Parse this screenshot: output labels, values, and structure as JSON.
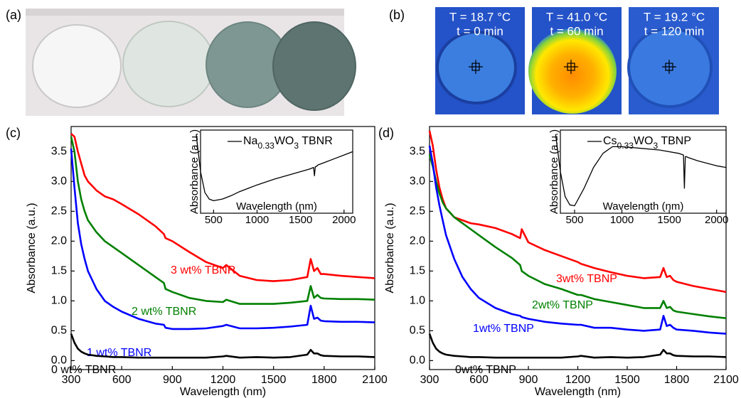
{
  "panel_labels": [
    "(a)",
    "(b)",
    "(c)",
    "(d)"
  ],
  "thermal_images": [
    {
      "temperature": "T = 18.7 °C",
      "time": "t = 0 min"
    },
    {
      "temperature": "T = 41.0 °C",
      "time": "t = 60 min"
    },
    {
      "temperature": "T = 19.2 °C",
      "time": "t = 120 min"
    }
  ],
  "chart_data": [
    {
      "type": "line",
      "xlabel": "Wavelength (nm)",
      "ylabel": "Absorbance (a.u.)",
      "x": [
        300,
        320,
        340,
        360,
        380,
        400,
        450,
        500,
        550,
        600,
        700,
        800,
        850,
        860,
        900,
        1000,
        1100,
        1200,
        1220,
        1300,
        1400,
        1500,
        1600,
        1700,
        1720,
        1740,
        1760,
        1780,
        1800,
        1900,
        2000,
        2100
      ],
      "xlim": [
        300,
        2100
      ],
      "xticks": [
        300,
        600,
        900,
        1200,
        1500,
        1800,
        2100
      ],
      "ylim": [
        -0.15,
        3.92
      ],
      "yticks": [
        {
          "value": 0,
          "label": "0.0"
        },
        0.5,
        {
          "value": 1,
          "label": "1.0"
        },
        1.5,
        {
          "value": 2,
          "label": "2.0"
        },
        2.5,
        {
          "value": 3,
          "label": "3.0"
        },
        3.5
      ],
      "series": [
        {
          "name": "3 wt% TBNR",
          "color": "#ff0000",
          "values": [
            3.8,
            3.75,
            3.5,
            3.3,
            3.1,
            3.0,
            2.85,
            2.75,
            2.7,
            2.62,
            2.45,
            2.25,
            2.12,
            2.05,
            2.0,
            1.82,
            1.65,
            1.55,
            1.6,
            1.42,
            1.35,
            1.33,
            1.35,
            1.4,
            1.7,
            1.5,
            1.55,
            1.45,
            1.45,
            1.42,
            1.4,
            1.38
          ]
        },
        {
          "name": "2 wt% TBNR",
          "color": "#008000",
          "values": [
            3.75,
            3.5,
            3.0,
            2.7,
            2.5,
            2.35,
            2.15,
            2.0,
            1.9,
            1.8,
            1.6,
            1.4,
            1.3,
            1.2,
            1.15,
            1.05,
            1.0,
            0.98,
            1.02,
            0.95,
            0.95,
            0.95,
            0.97,
            1.0,
            1.25,
            1.05,
            1.1,
            1.05,
            1.04,
            1.03,
            1.03,
            1.02
          ]
        },
        {
          "name": "1 wt% TBNR",
          "color": "#0000ff",
          "values": [
            3.55,
            2.9,
            2.3,
            1.95,
            1.7,
            1.5,
            1.2,
            1.0,
            0.9,
            0.82,
            0.7,
            0.62,
            0.6,
            0.55,
            0.53,
            0.53,
            0.54,
            0.58,
            0.6,
            0.54,
            0.54,
            0.55,
            0.57,
            0.6,
            0.92,
            0.7,
            0.72,
            0.67,
            0.66,
            0.65,
            0.65,
            0.64
          ]
        },
        {
          "name": "0 wt% TBNR",
          "color": "#000000",
          "values": [
            0.45,
            0.3,
            0.2,
            0.15,
            0.12,
            0.1,
            0.08,
            0.07,
            0.06,
            0.06,
            0.05,
            0.05,
            0.05,
            0.05,
            0.05,
            0.05,
            0.05,
            0.07,
            0.08,
            0.05,
            0.06,
            0.05,
            0.06,
            0.1,
            0.18,
            0.12,
            0.12,
            0.09,
            0.08,
            0.07,
            0.07,
            0.06
          ]
        }
      ]
    },
    {
      "type": "line",
      "xlabel": "Wavelength (nm)",
      "ylabel": "Absorbance (a.u.)",
      "x": [
        300,
        350,
        400,
        450,
        500,
        600,
        700,
        800,
        900,
        1000,
        1200,
        1400,
        1600,
        1650,
        1660,
        1670,
        1680,
        1700,
        1800,
        1900,
        2000,
        2100
      ],
      "xlim": [
        350,
        2100
      ],
      "xticks": [
        500,
        1000,
        1500,
        2000
      ],
      "ylim": [
        0,
        1
      ],
      "series": [
        {
          "name": "Na0.33WO3 TBNR",
          "color": "#000000",
          "values": [
            0.95,
            0.5,
            0.25,
            0.17,
            0.15,
            0.17,
            0.21,
            0.26,
            0.3,
            0.34,
            0.41,
            0.47,
            0.53,
            0.55,
            0.45,
            0.56,
            0.56,
            0.58,
            0.62,
            0.66,
            0.7,
            0.74
          ]
        }
      ]
    },
    {
      "type": "line",
      "xlabel": "Wavelength (nm)",
      "ylabel": "Absorbance (a.u.)",
      "x": [
        300,
        320,
        340,
        360,
        380,
        400,
        450,
        500,
        550,
        600,
        700,
        800,
        850,
        860,
        900,
        1000,
        1100,
        1200,
        1220,
        1300,
        1400,
        1500,
        1600,
        1700,
        1720,
        1740,
        1760,
        1780,
        1800,
        1900,
        2000,
        2100
      ],
      "xlim": [
        300,
        2100
      ],
      "xticks": [
        300,
        600,
        900,
        1200,
        1500,
        1800,
        2100
      ],
      "ylim": [
        -0.15,
        3.92
      ],
      "yticks": [
        {
          "value": 0,
          "label": "0.0"
        },
        0.5,
        {
          "value": 1,
          "label": "1.0"
        },
        1.5,
        {
          "value": 2,
          "label": "2.0"
        },
        2.5,
        {
          "value": 3,
          "label": "3.0"
        },
        3.5
      ],
      "series": [
        {
          "name": "3wt% TBNP",
          "color": "#ff0000",
          "values": [
            3.85,
            3.6,
            3.2,
            2.9,
            2.7,
            2.55,
            2.4,
            2.35,
            2.3,
            2.28,
            2.22,
            2.12,
            2.05,
            2.2,
            1.98,
            1.85,
            1.75,
            1.65,
            1.62,
            1.55,
            1.48,
            1.42,
            1.38,
            1.4,
            1.55,
            1.4,
            1.42,
            1.35,
            1.32,
            1.25,
            1.2,
            1.15
          ]
        },
        {
          "name": "2wt% TBNP",
          "color": "#008000",
          "values": [
            3.45,
            3.25,
            3.0,
            2.8,
            2.65,
            2.55,
            2.4,
            2.3,
            2.2,
            2.1,
            1.9,
            1.72,
            1.6,
            1.5,
            1.42,
            1.28,
            1.2,
            1.1,
            1.1,
            1.03,
            0.98,
            0.93,
            0.88,
            0.88,
            1.0,
            0.88,
            0.9,
            0.84,
            0.82,
            0.78,
            0.74,
            0.71
          ]
        },
        {
          "name": "1wt% TBNP",
          "color": "#0000ff",
          "values": [
            3.6,
            3.3,
            2.9,
            2.6,
            2.35,
            2.1,
            1.7,
            1.4,
            1.2,
            1.05,
            0.88,
            0.78,
            0.75,
            0.73,
            0.7,
            0.65,
            0.62,
            0.6,
            0.6,
            0.55,
            0.55,
            0.52,
            0.5,
            0.52,
            0.75,
            0.58,
            0.6,
            0.55,
            0.52,
            0.5,
            0.47,
            0.45
          ]
        },
        {
          "name": "0wt% TBNP",
          "color": "#000000",
          "values": [
            0.45,
            0.3,
            0.2,
            0.15,
            0.12,
            0.1,
            0.08,
            0.07,
            0.06,
            0.06,
            0.05,
            0.05,
            0.05,
            0.05,
            0.05,
            0.05,
            0.05,
            0.07,
            0.08,
            0.05,
            0.06,
            0.05,
            0.06,
            0.1,
            0.18,
            0.12,
            0.12,
            0.09,
            0.08,
            0.07,
            0.07,
            0.06
          ]
        }
      ]
    },
    {
      "type": "line",
      "xlabel": "Wavelength (nm)",
      "ylabel": "Absorbance (a.u.)",
      "x": [
        300,
        350,
        400,
        450,
        500,
        600,
        700,
        800,
        900,
        1000,
        1200,
        1400,
        1600,
        1650,
        1660,
        1670,
        1680,
        1700,
        1800,
        1900,
        2000,
        2100
      ],
      "xlim": [
        350,
        2100
      ],
      "xticks": [
        500,
        1000,
        1500,
        2000
      ],
      "ylim": [
        0,
        1
      ],
      "series": [
        {
          "name": "Cs0.33WO3 TBNP",
          "color": "#000000",
          "values": [
            0.95,
            0.5,
            0.2,
            0.1,
            0.09,
            0.3,
            0.55,
            0.72,
            0.8,
            0.8,
            0.78,
            0.76,
            0.72,
            0.7,
            0.3,
            0.68,
            0.68,
            0.67,
            0.63,
            0.6,
            0.57,
            0.55
          ]
        }
      ]
    }
  ]
}
